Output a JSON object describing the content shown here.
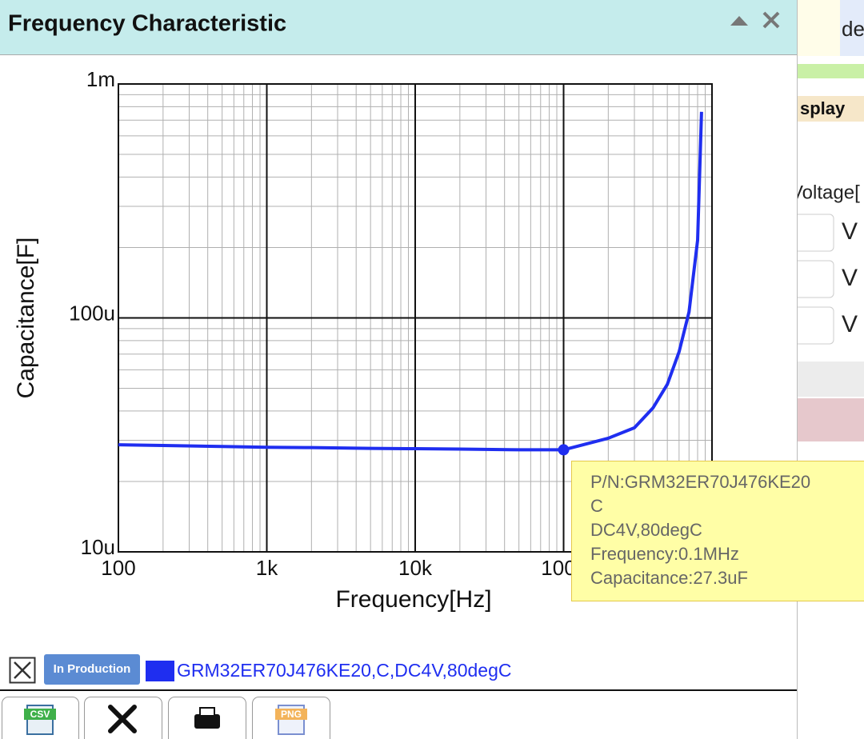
{
  "window": {
    "title": "Frequency Characteristic"
  },
  "background": {
    "fragments": [
      "de",
      "splay",
      "Voltage[",
      "V",
      "V",
      "V"
    ]
  },
  "chart_data": {
    "type": "line",
    "x_label": "Frequency[Hz]",
    "y_label": "Capacitance[F]",
    "x_log": true,
    "y_log": true,
    "grid": true,
    "xlim": [
      100,
      1000000
    ],
    "ylim": [
      1e-05,
      0.001
    ],
    "xticks": [
      100,
      {
        "value": 1000,
        "label": "1k"
      },
      {
        "value": 10000,
        "label": "10k"
      },
      {
        "value": 100000,
        "label": "100k"
      }
    ],
    "yticks": [
      {
        "value": 1e-05,
        "label": "10u"
      },
      {
        "value": 0.0001,
        "label": "100u"
      },
      {
        "value": 0.001,
        "label": "1m"
      }
    ],
    "x": [
      100,
      200,
      500,
      1000,
      2000,
      5000,
      10000,
      20000,
      50000,
      100000,
      200000,
      300000,
      400000,
      500000,
      600000,
      700000,
      800000,
      850000
    ],
    "series": [
      {
        "name": "GRM32ER70J476KE20,C,DC4V,80degC",
        "color": "#1f2ef0",
        "values": [
          2.87e-05,
          2.85e-05,
          2.82e-05,
          2.8e-05,
          2.79e-05,
          2.77e-05,
          2.76e-05,
          2.75e-05,
          2.73e-05,
          2.73e-05,
          3.06e-05,
          3.39e-05,
          4.12e-05,
          5.2e-05,
          7.16e-05,
          0.000106,
          0.000215,
          0.00076
        ]
      }
    ],
    "marker": {
      "x": 100000,
      "value": 2.73e-05
    }
  },
  "tooltip": {
    "lines": [
      "P/N:GRM32ER70J476KE20",
      "C",
      "DC4V,80degC",
      "Frequency:0.1MHz",
      "Capacitance:27.3uF"
    ]
  },
  "legend": {
    "status": "In Production"
  },
  "toolbar": {
    "icons": [
      "CSV",
      "PNG"
    ]
  }
}
